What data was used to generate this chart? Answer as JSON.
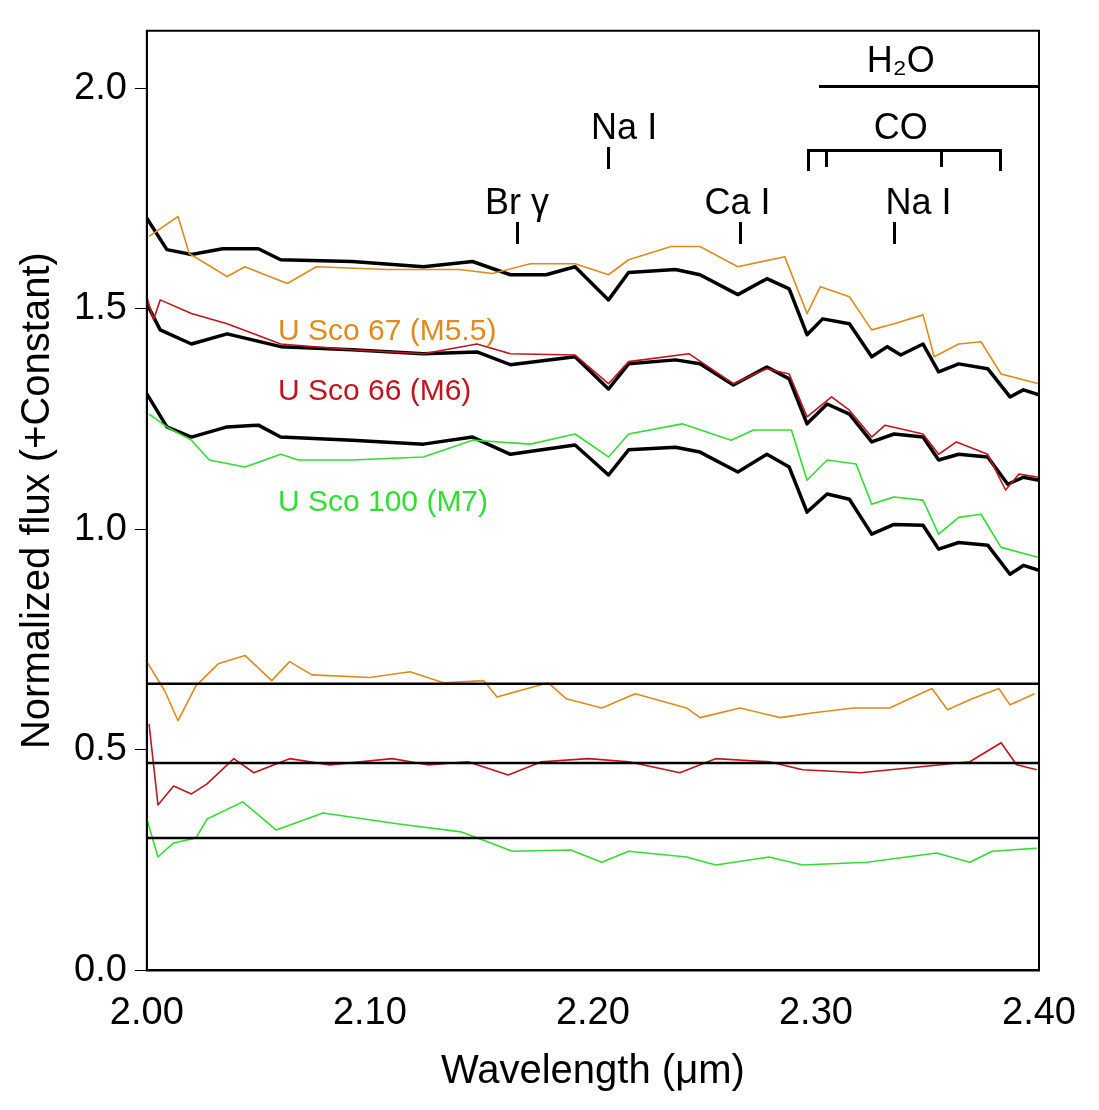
{
  "chart_data": {
    "type": "line",
    "xlabel": "Wavelength (μm)",
    "ylabel": "Normalized flux (+Constant)",
    "xlim": [
      2.0,
      2.4
    ],
    "ylim": [
      0,
      2.13
    ],
    "xticks": [
      {
        "value": 2.0,
        "label": "2.00"
      },
      {
        "value": 2.1,
        "label": "2.10"
      },
      {
        "value": 2.2,
        "label": "2.20"
      },
      {
        "value": 2.3,
        "label": "2.30"
      },
      {
        "value": 2.4,
        "label": "2.40"
      }
    ],
    "yticks": [
      {
        "value": 0,
        "label": "0.0"
      },
      {
        "value": 0.5,
        "label": "0.5"
      },
      {
        "value": 1.0,
        "label": "1.0"
      },
      {
        "value": 1.5,
        "label": "1.5"
      },
      {
        "value": 2.0,
        "label": "2.0"
      }
    ],
    "grid": false,
    "legend": false,
    "series": [
      {
        "name": "U Sco 67 (M5.5)",
        "color": "#e08a1e",
        "x": [
          2.001,
          2.014,
          2.019,
          2.036,
          2.044,
          2.063,
          2.076,
          2.108,
          2.14,
          2.155,
          2.172,
          2.192,
          2.207,
          2.216,
          2.235,
          2.248,
          2.265,
          2.286,
          2.296,
          2.302,
          2.315,
          2.325,
          2.335,
          2.348,
          2.353,
          2.364,
          2.374,
          2.383,
          2.4
        ],
        "values": [
          1.664,
          1.709,
          1.625,
          1.573,
          1.595,
          1.557,
          1.595,
          1.589,
          1.589,
          1.58,
          1.602,
          1.602,
          1.577,
          1.611,
          1.641,
          1.641,
          1.595,
          1.618,
          1.489,
          1.55,
          1.527,
          1.452,
          1.466,
          1.486,
          1.391,
          1.42,
          1.425,
          1.352,
          1.33
        ]
      },
      {
        "color": "#000000",
        "x": [
          2.0,
          2.009,
          2.02,
          2.034,
          2.05,
          2.06,
          2.092,
          2.124,
          2.146,
          2.163,
          2.179,
          2.192,
          2.207,
          2.216,
          2.237,
          2.248,
          2.265,
          2.278,
          2.288,
          2.296,
          2.303,
          2.315,
          2.325,
          2.332,
          2.338,
          2.348,
          2.355,
          2.364,
          2.377,
          2.387,
          2.393,
          2.4
        ],
        "values": [
          1.705,
          1.634,
          1.623,
          1.636,
          1.636,
          1.611,
          1.607,
          1.595,
          1.607,
          1.577,
          1.577,
          1.595,
          1.52,
          1.582,
          1.589,
          1.577,
          1.532,
          1.568,
          1.545,
          1.441,
          1.477,
          1.466,
          1.391,
          1.414,
          1.395,
          1.42,
          1.357,
          1.375,
          1.364,
          1.3,
          1.316,
          1.305
        ]
      },
      {
        "name": "U Sco 66 (M6)",
        "color": "#c0141e",
        "x": [
          2.0,
          2.003,
          2.006,
          2.02,
          2.036,
          2.06,
          2.092,
          2.124,
          2.148,
          2.163,
          2.192,
          2.207,
          2.216,
          2.243,
          2.263,
          2.278,
          2.288,
          2.296,
          2.307,
          2.315,
          2.325,
          2.331,
          2.348,
          2.355,
          2.363,
          2.377,
          2.385,
          2.391,
          2.4
        ],
        "values": [
          1.527,
          1.475,
          1.52,
          1.489,
          1.466,
          1.42,
          1.407,
          1.398,
          1.42,
          1.398,
          1.395,
          1.33,
          1.38,
          1.398,
          1.33,
          1.364,
          1.352,
          1.255,
          1.3,
          1.27,
          1.209,
          1.236,
          1.216,
          1.17,
          1.198,
          1.17,
          1.089,
          1.125,
          1.118
        ]
      },
      {
        "color": "#000000",
        "x": [
          2.0,
          2.006,
          2.02,
          2.036,
          2.06,
          2.092,
          2.124,
          2.148,
          2.163,
          2.192,
          2.207,
          2.216,
          2.237,
          2.248,
          2.263,
          2.278,
          2.288,
          2.296,
          2.305,
          2.315,
          2.325,
          2.335,
          2.348,
          2.355,
          2.364,
          2.377,
          2.386,
          2.393,
          2.4
        ],
        "values": [
          1.511,
          1.452,
          1.42,
          1.443,
          1.414,
          1.407,
          1.398,
          1.402,
          1.373,
          1.391,
          1.318,
          1.375,
          1.384,
          1.375,
          1.327,
          1.368,
          1.341,
          1.239,
          1.284,
          1.261,
          1.198,
          1.216,
          1.209,
          1.157,
          1.17,
          1.164,
          1.102,
          1.118,
          1.111
        ]
      },
      {
        "name": "U Sco 100 (M7)",
        "color": "#33dd33",
        "x": [
          2.001,
          2.009,
          2.02,
          2.028,
          2.044,
          2.06,
          2.068,
          2.092,
          2.124,
          2.146,
          2.172,
          2.192,
          2.207,
          2.216,
          2.24,
          2.262,
          2.272,
          2.289,
          2.296,
          2.305,
          2.318,
          2.325,
          2.335,
          2.348,
          2.355,
          2.364,
          2.374,
          2.383,
          2.4
        ],
        "values": [
          1.261,
          1.232,
          1.202,
          1.157,
          1.141,
          1.17,
          1.157,
          1.157,
          1.164,
          1.202,
          1.193,
          1.216,
          1.164,
          1.216,
          1.239,
          1.202,
          1.225,
          1.225,
          1.111,
          1.157,
          1.148,
          1.057,
          1.073,
          1.066,
          0.989,
          1.027,
          1.034,
          0.959,
          0.936
        ]
      },
      {
        "color": "#000000",
        "x": [
          2.0,
          2.009,
          2.02,
          2.036,
          2.05,
          2.06,
          2.092,
          2.124,
          2.146,
          2.163,
          2.192,
          2.207,
          2.216,
          2.237,
          2.248,
          2.265,
          2.278,
          2.288,
          2.296,
          2.305,
          2.315,
          2.325,
          2.335,
          2.348,
          2.355,
          2.364,
          2.377,
          2.387,
          2.393,
          2.4
        ],
        "values": [
          1.307,
          1.232,
          1.209,
          1.232,
          1.236,
          1.209,
          1.202,
          1.193,
          1.209,
          1.17,
          1.191,
          1.123,
          1.18,
          1.186,
          1.175,
          1.13,
          1.17,
          1.141,
          1.039,
          1.08,
          1.068,
          0.989,
          1.011,
          1.009,
          0.955,
          0.97,
          0.964,
          0.898,
          0.918,
          0.907
        ]
      },
      {
        "color": "#e08a1e",
        "x": [
          2.0,
          2.008,
          2.014,
          2.022,
          2.032,
          2.044,
          2.056,
          2.064,
          2.074,
          2.1,
          2.118,
          2.133,
          2.151,
          2.157,
          2.18,
          2.188,
          2.204,
          2.219,
          2.242,
          2.248,
          2.266,
          2.284,
          2.299,
          2.317,
          2.333,
          2.352,
          2.359,
          2.37,
          2.382,
          2.387,
          2.398
        ],
        "values": [
          0.7,
          0.634,
          0.566,
          0.645,
          0.695,
          0.714,
          0.657,
          0.7,
          0.67,
          0.664,
          0.677,
          0.652,
          0.657,
          0.62,
          0.652,
          0.616,
          0.595,
          0.627,
          0.595,
          0.573,
          0.595,
          0.573,
          0.584,
          0.595,
          0.595,
          0.639,
          0.591,
          0.616,
          0.639,
          0.602,
          0.627
        ]
      },
      {
        "color": "#c0141e",
        "x": [
          2.001,
          2.005,
          2.012,
          2.02,
          2.027,
          2.039,
          2.048,
          2.064,
          2.082,
          2.11,
          2.126,
          2.144,
          2.162,
          2.177,
          2.198,
          2.216,
          2.239,
          2.255,
          2.279,
          2.294,
          2.32,
          2.346,
          2.369,
          2.383,
          2.39,
          2.399
        ],
        "values": [
          0.559,
          0.375,
          0.418,
          0.4,
          0.423,
          0.48,
          0.448,
          0.48,
          0.466,
          0.48,
          0.466,
          0.473,
          0.443,
          0.473,
          0.48,
          0.473,
          0.448,
          0.48,
          0.473,
          0.455,
          0.448,
          0.461,
          0.473,
          0.516,
          0.466,
          0.455
        ]
      },
      {
        "color": "#33dd33",
        "x": [
          2.0,
          2.005,
          2.012,
          2.022,
          2.027,
          2.043,
          2.048,
          2.058,
          2.079,
          2.113,
          2.141,
          2.151,
          2.164,
          2.19,
          2.204,
          2.216,
          2.242,
          2.255,
          2.279,
          2.294,
          2.323,
          2.354,
          2.369,
          2.379,
          2.399
        ],
        "values": [
          0.343,
          0.257,
          0.289,
          0.3,
          0.343,
          0.382,
          0.361,
          0.318,
          0.357,
          0.332,
          0.314,
          0.295,
          0.27,
          0.273,
          0.245,
          0.27,
          0.257,
          0.239,
          0.257,
          0.239,
          0.245,
          0.266,
          0.245,
          0.27,
          0.277
        ]
      }
    ],
    "ref_lines": [
      {
        "axis": "y",
        "value": 0.65,
        "color": "#000000"
      },
      {
        "axis": "y",
        "value": 0.47,
        "color": "#000000"
      },
      {
        "axis": "y",
        "value": 0.3,
        "color": "#000000"
      }
    ],
    "annotations": [
      "Br γ",
      "Na I",
      "Ca I",
      "Na I",
      "CO",
      "H₂O"
    ]
  }
}
